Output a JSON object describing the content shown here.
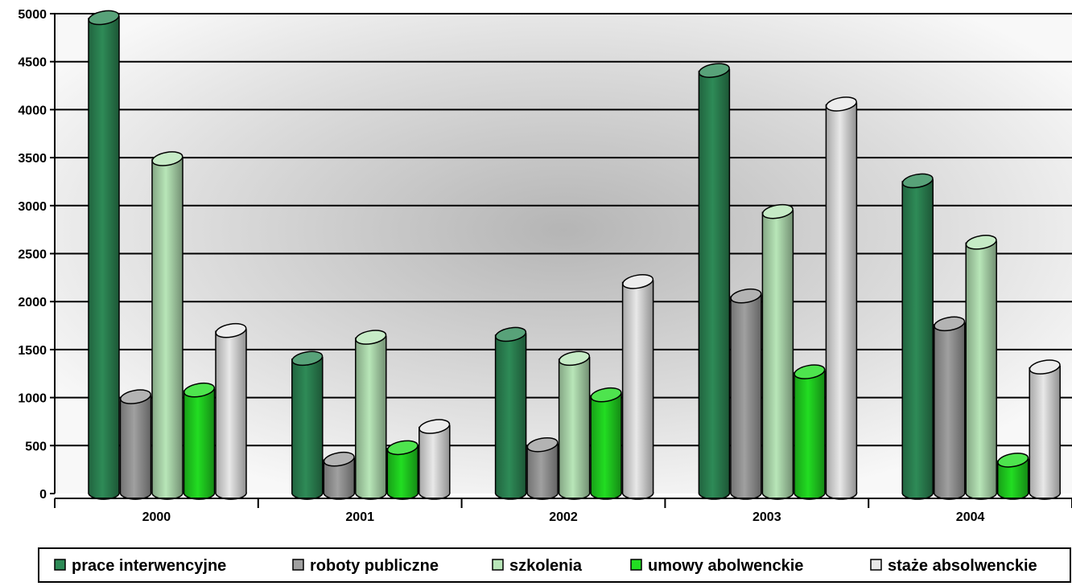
{
  "chart_data": {
    "type": "bar",
    "title": "",
    "xlabel": "",
    "ylabel": "",
    "categories": [
      "2000",
      "2001",
      "2002",
      "2003",
      "2004"
    ],
    "ylim": [
      0,
      5000
    ],
    "yticks": [
      "0",
      "500",
      "1000",
      "1500",
      "2000",
      "2500",
      "3000",
      "3500",
      "4000",
      "4500",
      "5000"
    ],
    "grid": true,
    "legend_position": "bottom",
    "series": [
      {
        "name": "prace interwencyjne",
        "color": "#2e8b57",
        "values": [
          4950,
          1400,
          1650,
          4400,
          3250
        ]
      },
      {
        "name": "roboty publiczne",
        "color": "#a0a0a0",
        "values": [
          1000,
          350,
          500,
          2050,
          1760
        ]
      },
      {
        "name": "szkolenia",
        "color": "#b8e6b8",
        "values": [
          3480,
          1620,
          1400,
          2930,
          2610
        ]
      },
      {
        "name": "umowy abolwenckie",
        "color": "#22dd22",
        "values": [
          1070,
          470,
          1020,
          1260,
          340
        ]
      },
      {
        "name": "staże absolwenckie",
        "color": "#e8e8e8",
        "values": [
          1690,
          690,
          2200,
          4050,
          1310
        ]
      }
    ]
  }
}
